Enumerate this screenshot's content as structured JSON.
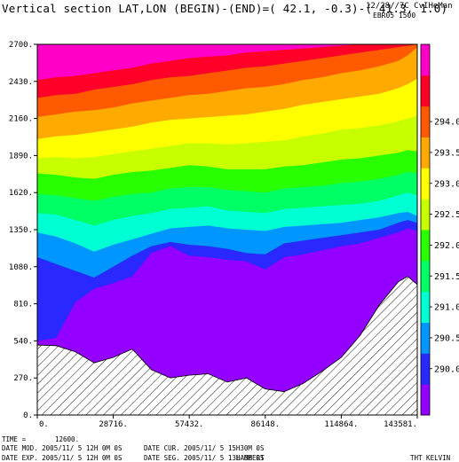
{
  "header": {
    "title": "Vertical section LAT,LON (BEGIN)-(END)=( 42.1, -0.3)-( 41.3,  1.0)",
    "datestamp": "12/28//7C  CvIHeMan",
    "run_tag": "EBR05 1500"
  },
  "chart_data": {
    "type": "heatmap",
    "subtype": "filled-contour vertical cross-section",
    "title": "Vertical section LAT,LON (BEGIN)-(END)=( 42.1, -0.3)-( 41.3,  1.0)",
    "xlabel": "",
    "ylabel": "",
    "xlim": [
      0,
      143581
    ],
    "ylim": [
      0,
      2700
    ],
    "x_ticks": [
      "0.",
      "28716.",
      "57432.",
      "86148.",
      "114864.",
      "143581."
    ],
    "x_tick_values": [
      0,
      28716,
      57432,
      86148,
      114864,
      143581
    ],
    "y_ticks": [
      "0.",
      "270.",
      "540.",
      "810.",
      "1080.",
      "1350.",
      "1620.",
      "1890.",
      "2160.",
      "2430.",
      "2700."
    ],
    "y_tick_values": [
      0,
      270,
      540,
      810,
      1080,
      1350,
      1620,
      1890,
      2160,
      2430,
      2700
    ],
    "colorbar": {
      "labels": [
        "290.0",
        "290.5",
        "291.0",
        "291.5",
        "292.0",
        "292.5",
        "293.0",
        "293.5",
        "294.0"
      ],
      "colors": [
        "#9400ff",
        "#2828ff",
        "#0096ff",
        "#00ffd2",
        "#00ff64",
        "#28ff00",
        "#c8ff00",
        "#ffff00",
        "#ffaa00",
        "#ff5a00",
        "#ff0028",
        "#ff00c8"
      ]
    },
    "x_samples": [
      0,
      7100,
      14400,
      21500,
      28700,
      35900,
      43100,
      50300,
      57400,
      64600,
      71800,
      79000,
      86100,
      93300,
      100500,
      107700,
      114900,
      122000,
      129200,
      136400,
      140000,
      143581
    ],
    "terrain_height": [
      510,
      505,
      460,
      380,
      420,
      480,
      330,
      270,
      290,
      300,
      240,
      270,
      190,
      170,
      230,
      320,
      420,
      580,
      800,
      970,
      1010,
      950
    ],
    "isentrope_heights": [
      {
        "level": 290.0,
        "heights": [
          540,
          560,
          820,
          920,
          960,
          1010,
          1180,
          1230,
          1160,
          1150,
          1130,
          1120,
          1060,
          1150,
          1170,
          1200,
          1230,
          1250,
          1290,
          1330,
          1360,
          1340
        ]
      },
      {
        "level": 290.5,
        "heights": [
          1150,
          1100,
          1050,
          1000,
          1080,
          1160,
          1230,
          1260,
          1240,
          1230,
          1210,
          1180,
          1170,
          1250,
          1270,
          1290,
          1310,
          1330,
          1350,
          1400,
          1420,
          1400
        ]
      },
      {
        "level": 291.0,
        "heights": [
          1330,
          1300,
          1250,
          1190,
          1240,
          1280,
          1320,
          1360,
          1370,
          1380,
          1360,
          1350,
          1340,
          1370,
          1380,
          1390,
          1400,
          1420,
          1440,
          1470,
          1480,
          1450
        ]
      },
      {
        "level": 291.5,
        "heights": [
          1470,
          1460,
          1420,
          1380,
          1420,
          1450,
          1470,
          1500,
          1510,
          1520,
          1490,
          1480,
          1470,
          1500,
          1510,
          1520,
          1530,
          1540,
          1560,
          1600,
          1620,
          1600
        ]
      },
      {
        "level": 292.0,
        "heights": [
          1610,
          1600,
          1580,
          1560,
          1590,
          1610,
          1620,
          1650,
          1660,
          1660,
          1640,
          1630,
          1620,
          1650,
          1660,
          1670,
          1690,
          1700,
          1720,
          1750,
          1770,
          1760
        ]
      },
      {
        "level": 292.5,
        "heights": [
          1760,
          1750,
          1730,
          1720,
          1750,
          1770,
          1780,
          1800,
          1820,
          1810,
          1790,
          1790,
          1790,
          1810,
          1820,
          1840,
          1860,
          1870,
          1890,
          1910,
          1930,
          1920
        ]
      },
      {
        "level": 293.0,
        "heights": [
          1870,
          1880,
          1870,
          1880,
          1900,
          1920,
          1940,
          1960,
          1980,
          1980,
          1970,
          1980,
          1990,
          2000,
          2030,
          2050,
          2080,
          2090,
          2110,
          2140,
          2160,
          2180
        ]
      },
      {
        "level": 293.5,
        "heights": [
          2010,
          2030,
          2040,
          2060,
          2080,
          2100,
          2130,
          2150,
          2160,
          2170,
          2180,
          2190,
          2210,
          2230,
          2260,
          2280,
          2300,
          2320,
          2340,
          2380,
          2410,
          2450
        ]
      },
      {
        "level": 294.0,
        "heights": [
          2170,
          2190,
          2210,
          2220,
          2240,
          2270,
          2290,
          2310,
          2330,
          2340,
          2360,
          2380,
          2390,
          2410,
          2440,
          2460,
          2490,
          2510,
          2540,
          2580,
          2620,
          2680
        ]
      },
      {
        "level": 294.5,
        "heights": [
          2310,
          2330,
          2340,
          2370,
          2390,
          2410,
          2440,
          2460,
          2470,
          2490,
          2510,
          2530,
          2540,
          2560,
          2580,
          2600,
          2620,
          2640,
          2660,
          2680,
          2690,
          2700
        ]
      },
      {
        "level": 295.0,
        "heights": [
          2440,
          2460,
          2470,
          2490,
          2510,
          2530,
          2560,
          2580,
          2600,
          2610,
          2620,
          2640,
          2650,
          2660,
          2670,
          2680,
          2690,
          2700,
          2700,
          2700,
          2700,
          2700
        ]
      }
    ],
    "grid": false,
    "legend": "right colorbar"
  },
  "footer": {
    "time_label": "TIME =",
    "time_value": "12600.",
    "line1_left": "DATE MOD. 2005/11/ 5   12H 0M 0S",
    "line1_right": "DATE CUR. 2005/11/ 5   15H30M 0S",
    "line2_left": "DATE EXP. 2005/11/ 5   12H 0M 0S",
    "line2_right": "DATE SEG. 2005/11/ 5   13H 0M 0S",
    "projection": "LAMBERT",
    "field_label": "THT KELVIN"
  }
}
